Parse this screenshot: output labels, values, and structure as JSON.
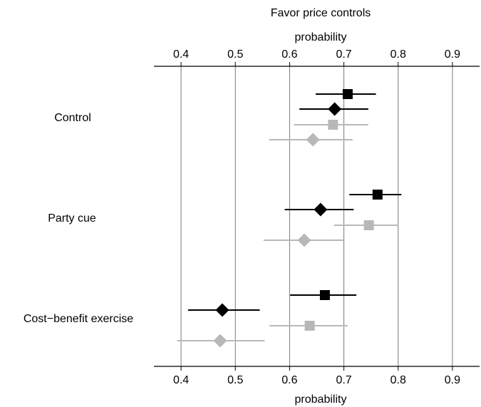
{
  "chart_data": {
    "type": "scatter",
    "title": "Favor price controls",
    "xlabel_top": "probability",
    "xlabel_bottom": "probability",
    "xlim": [
      0.35,
      0.95
    ],
    "xticks": [
      0.4,
      0.5,
      0.6,
      0.7,
      0.8,
      0.9
    ],
    "xtick_labels": [
      "0.4",
      "0.5",
      "0.6",
      "0.7",
      "0.8",
      "0.9"
    ],
    "grid": "vertical",
    "categories": [
      "Control",
      "Party cue",
      "Cost−benefit exercise"
    ],
    "series": [
      {
        "marker": "square",
        "color": "#000000",
        "points": [
          {
            "group": 0,
            "est": 0.707,
            "lo": 0.648,
            "hi": 0.759
          },
          {
            "group": 1,
            "est": 0.762,
            "lo": 0.71,
            "hi": 0.806
          },
          {
            "group": 2,
            "est": 0.665,
            "lo": 0.601,
            "hi": 0.723
          }
        ]
      },
      {
        "marker": "diamond",
        "color": "#000000",
        "points": [
          {
            "group": 0,
            "est": 0.683,
            "lo": 0.618,
            "hi": 0.745
          },
          {
            "group": 1,
            "est": 0.657,
            "lo": 0.591,
            "hi": 0.718
          },
          {
            "group": 2,
            "est": 0.476,
            "lo": 0.413,
            "hi": 0.545
          }
        ]
      },
      {
        "marker": "square",
        "color": "#b8b8b8",
        "points": [
          {
            "group": 0,
            "est": 0.68,
            "lo": 0.608,
            "hi": 0.745
          },
          {
            "group": 1,
            "est": 0.746,
            "lo": 0.682,
            "hi": 0.801
          },
          {
            "group": 2,
            "est": 0.637,
            "lo": 0.563,
            "hi": 0.707
          }
        ]
      },
      {
        "marker": "diamond",
        "color": "#b8b8b8",
        "points": [
          {
            "group": 0,
            "est": 0.643,
            "lo": 0.562,
            "hi": 0.716
          },
          {
            "group": 1,
            "est": 0.627,
            "lo": 0.552,
            "hi": 0.7
          },
          {
            "group": 2,
            "est": 0.472,
            "lo": 0.393,
            "hi": 0.554
          }
        ]
      }
    ]
  }
}
